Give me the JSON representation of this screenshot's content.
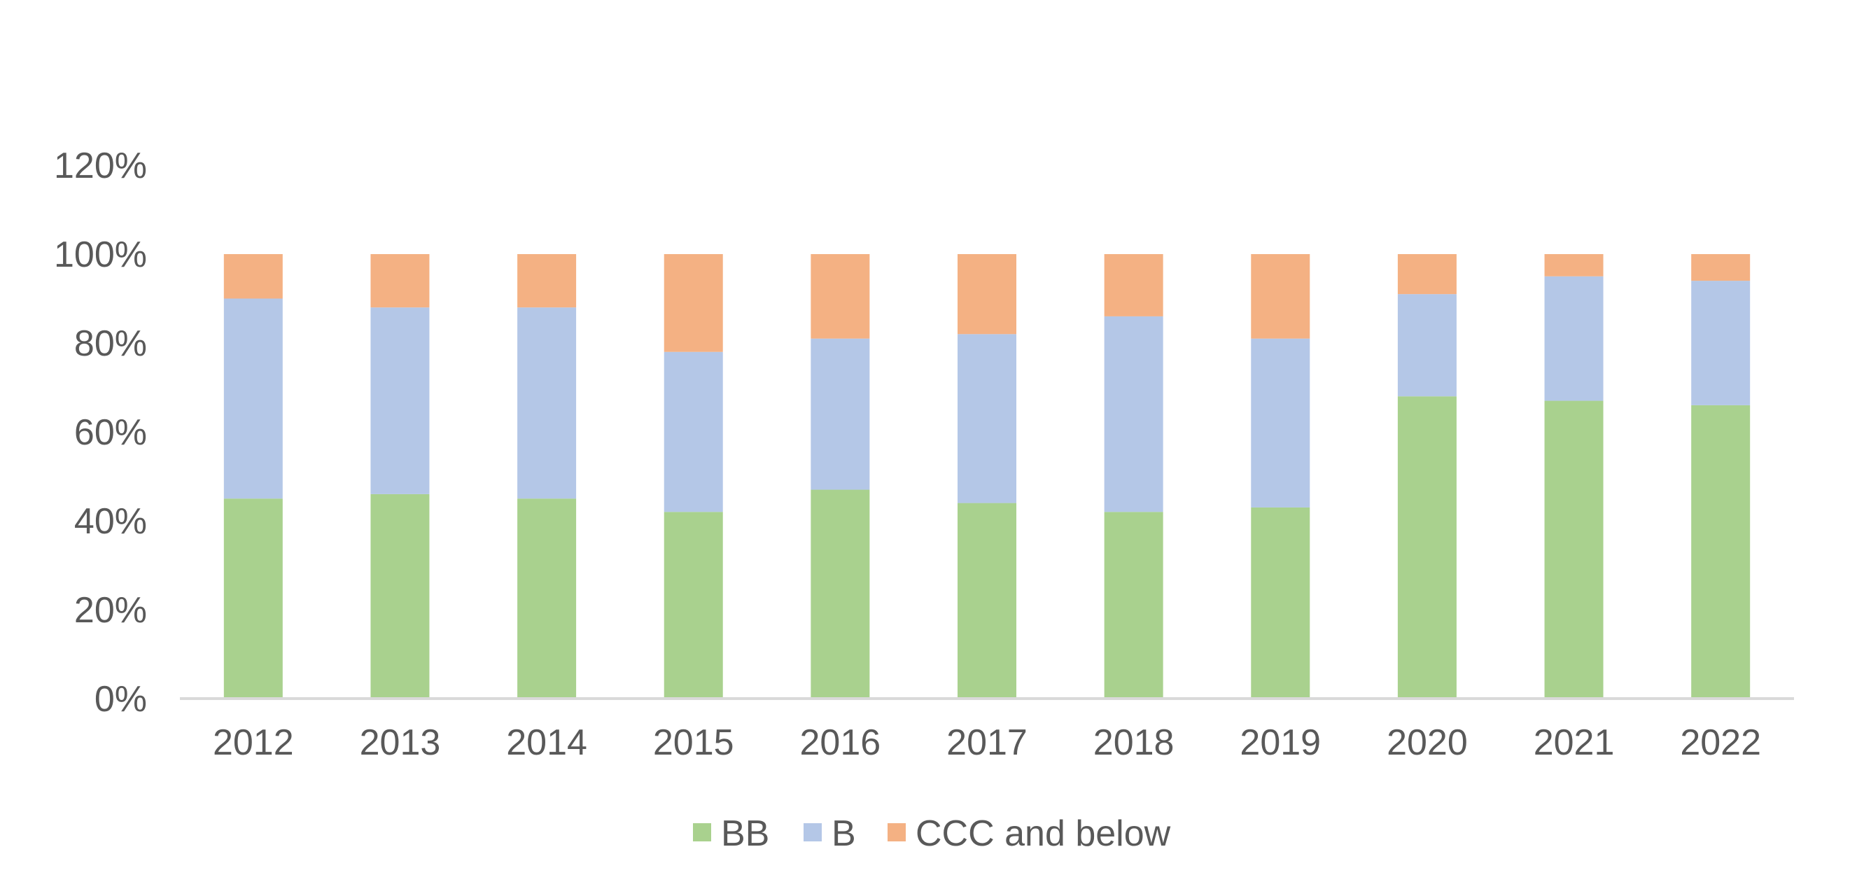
{
  "chart_data": {
    "type": "bar",
    "stacked": true,
    "title": "",
    "xlabel": "",
    "ylabel": "",
    "categories": [
      "2012",
      "2013",
      "2014",
      "2015",
      "2016",
      "2017",
      "2018",
      "2019",
      "2020",
      "2021",
      "2022"
    ],
    "series": [
      {
        "name": "BB",
        "color": "#a9d18e",
        "values": [
          45,
          46,
          45,
          42,
          47,
          44,
          42,
          43,
          68,
          67,
          66
        ]
      },
      {
        "name": "B",
        "color": "#b4c7e7",
        "values": [
          45,
          42,
          43,
          36,
          34,
          38,
          44,
          38,
          23,
          28,
          28
        ]
      },
      {
        "name": "CCC and below",
        "color": "#f4b183",
        "values": [
          10,
          12,
          12,
          22,
          19,
          18,
          14,
          19,
          9,
          5,
          6
        ]
      }
    ],
    "ylim": [
      0,
      120
    ],
    "yticks": [
      0,
      20,
      40,
      60,
      80,
      100,
      120
    ],
    "ytick_labels": [
      "0%",
      "20%",
      "40%",
      "60%",
      "80%",
      "100%",
      "120%"
    ],
    "grid": false,
    "legend_position": "bottom",
    "axis_color": "#d9d9d9",
    "text_color": "#595959"
  }
}
